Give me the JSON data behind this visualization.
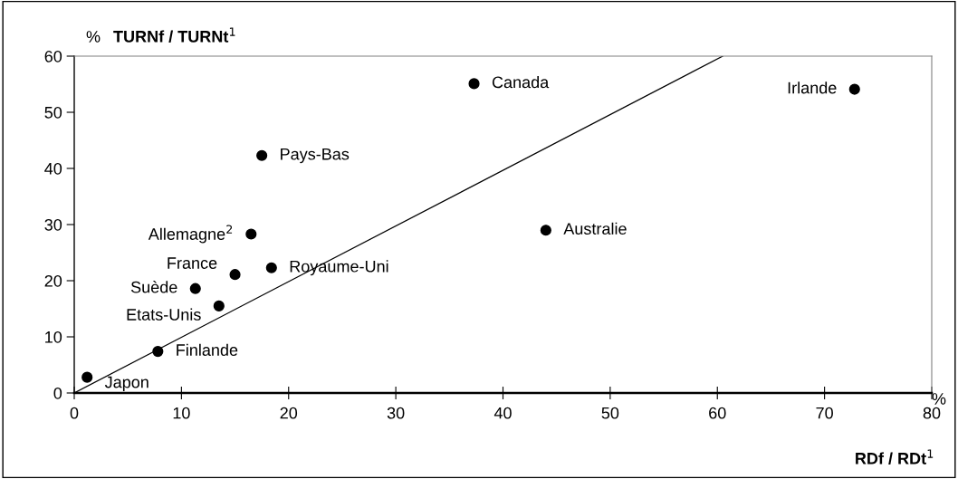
{
  "chart_data": {
    "type": "scatter",
    "xlabel": "RDf / RDt$^{1}$",
    "ylabel": "TURNf / TURNt$^{1}$",
    "x": [
      1.2,
      7.8,
      13.5,
      11.3,
      15.0,
      18.4,
      16.5,
      17.5,
      37.3,
      44.0,
      72.8
    ],
    "series": [
      {
        "color": "#000000",
        "values": [
          2.8,
          7.4,
          15.5,
          18.6,
          21.1,
          22.3,
          28.3,
          42.3,
          55.1,
          29.0,
          54.1
        ]
      },
      {
        "type": "line",
        "color": "#000000",
        "x": [
          0,
          60.5
        ],
        "values": [
          0,
          60
        ],
        "marker": "none"
      }
    ],
    "marker": "circle",
    "grid": false,
    "legend": false,
    "xlim": [
      0,
      80
    ],
    "ylim": [
      0,
      60
    ],
    "xticks": [
      0,
      10,
      20,
      30,
      40,
      50,
      60,
      70,
      80
    ],
    "yticks": [
      0,
      10,
      20,
      30,
      40,
      50,
      60
    ],
    "annotations": [
      {
        "text": "Japon",
        "x": 1.2,
        "y": 2.8
      },
      {
        "text": "Finlande",
        "x": 7.8,
        "y": 7.4
      },
      {
        "text": "Etats-Unis",
        "x": 13.5,
        "y": 15.5
      },
      {
        "text": "Suède",
        "x": 11.3,
        "y": 18.6
      },
      {
        "text": "France",
        "x": 15.0,
        "y": 21.1
      },
      {
        "text": "Royaume-Uni",
        "x": 18.4,
        "y": 22.3
      },
      {
        "text": "Allemagne$^{2}$",
        "x": 16.5,
        "y": 28.3
      },
      {
        "text": "Pays-Bas",
        "x": 17.5,
        "y": 42.3
      },
      {
        "text": "Canada",
        "x": 37.3,
        "y": 55.1
      },
      {
        "text": "Australie",
        "x": 44.0,
        "y": 29.0
      },
      {
        "text": "Irlande",
        "x": 72.8,
        "y": 54.1
      },
      "%",
      "%"
    ]
  }
}
